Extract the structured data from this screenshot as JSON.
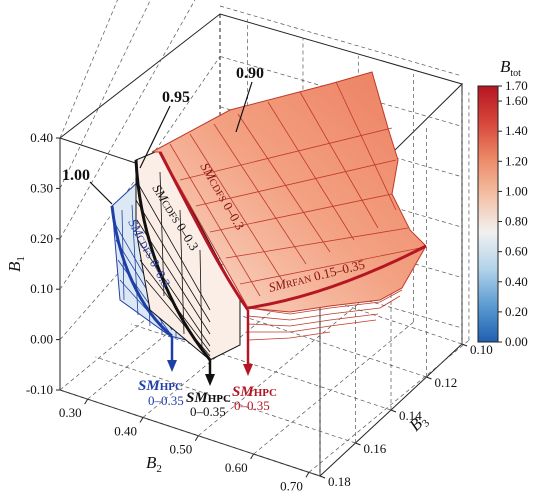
{
  "chart_data": {
    "type": "surface3d",
    "axes": {
      "B1": {
        "label": "B",
        "sub": "1",
        "ticks": [
          "-0.10",
          "0.00",
          "0.10",
          "0.20",
          "0.30",
          "0.40"
        ],
        "range": [
          -0.1,
          0.4
        ]
      },
      "B2": {
        "label": "B",
        "sub": "2",
        "ticks": [
          "0.30",
          "0.40",
          "0.50",
          "0.60",
          "0.70"
        ],
        "range": [
          0.25,
          0.72
        ]
      },
      "B3": {
        "label": "B",
        "sub": "3",
        "ticks": [
          "0.10",
          "0.12",
          "0.14",
          "0.16",
          "0.18"
        ],
        "range": [
          0.1,
          0.18
        ]
      }
    },
    "colorbar": {
      "label": "B",
      "sub": "tot",
      "ticks": [
        "0.00",
        "0.20",
        "0.40",
        "0.60",
        "0.80",
        "1.00",
        "1.20",
        "1.40",
        "1.60",
        "1.70"
      ],
      "range": [
        0.0,
        1.7
      ],
      "colors": [
        "#1f5fb0",
        "#5c9bd1",
        "#b3d3ea",
        "#f1f1f1",
        "#f4c1a6",
        "#ec8a68",
        "#d8463a",
        "#b51623"
      ]
    },
    "contour_labels": [
      "1.00",
      "0.95",
      "0.90"
    ],
    "series": [
      {
        "name_main": "SM",
        "name_sub": "CDFS",
        "range": "0–0.3",
        "color": "#1f3fa8"
      },
      {
        "name_main": "SM",
        "name_sub": "CDFS",
        "range": "0–0.3",
        "color": "#111111"
      },
      {
        "name_main": "SM",
        "name_sub": "CDFS",
        "range": "0–0.3",
        "color": "#b51623"
      },
      {
        "name_main": "SM",
        "name_sub": "RFAN",
        "range": "0.15–0.35",
        "color": "#b51623"
      }
    ],
    "hpc_labels": [
      {
        "main": "SM",
        "sub": "HPC",
        "range": "0–0.35",
        "color": "#1f3fa8"
      },
      {
        "main": "SM",
        "sub": "HPC",
        "range": "0–0.35",
        "color": "#111111"
      },
      {
        "main": "SM",
        "sub": "HPC",
        "range": "0–0.35",
        "color": "#b51623"
      }
    ]
  }
}
